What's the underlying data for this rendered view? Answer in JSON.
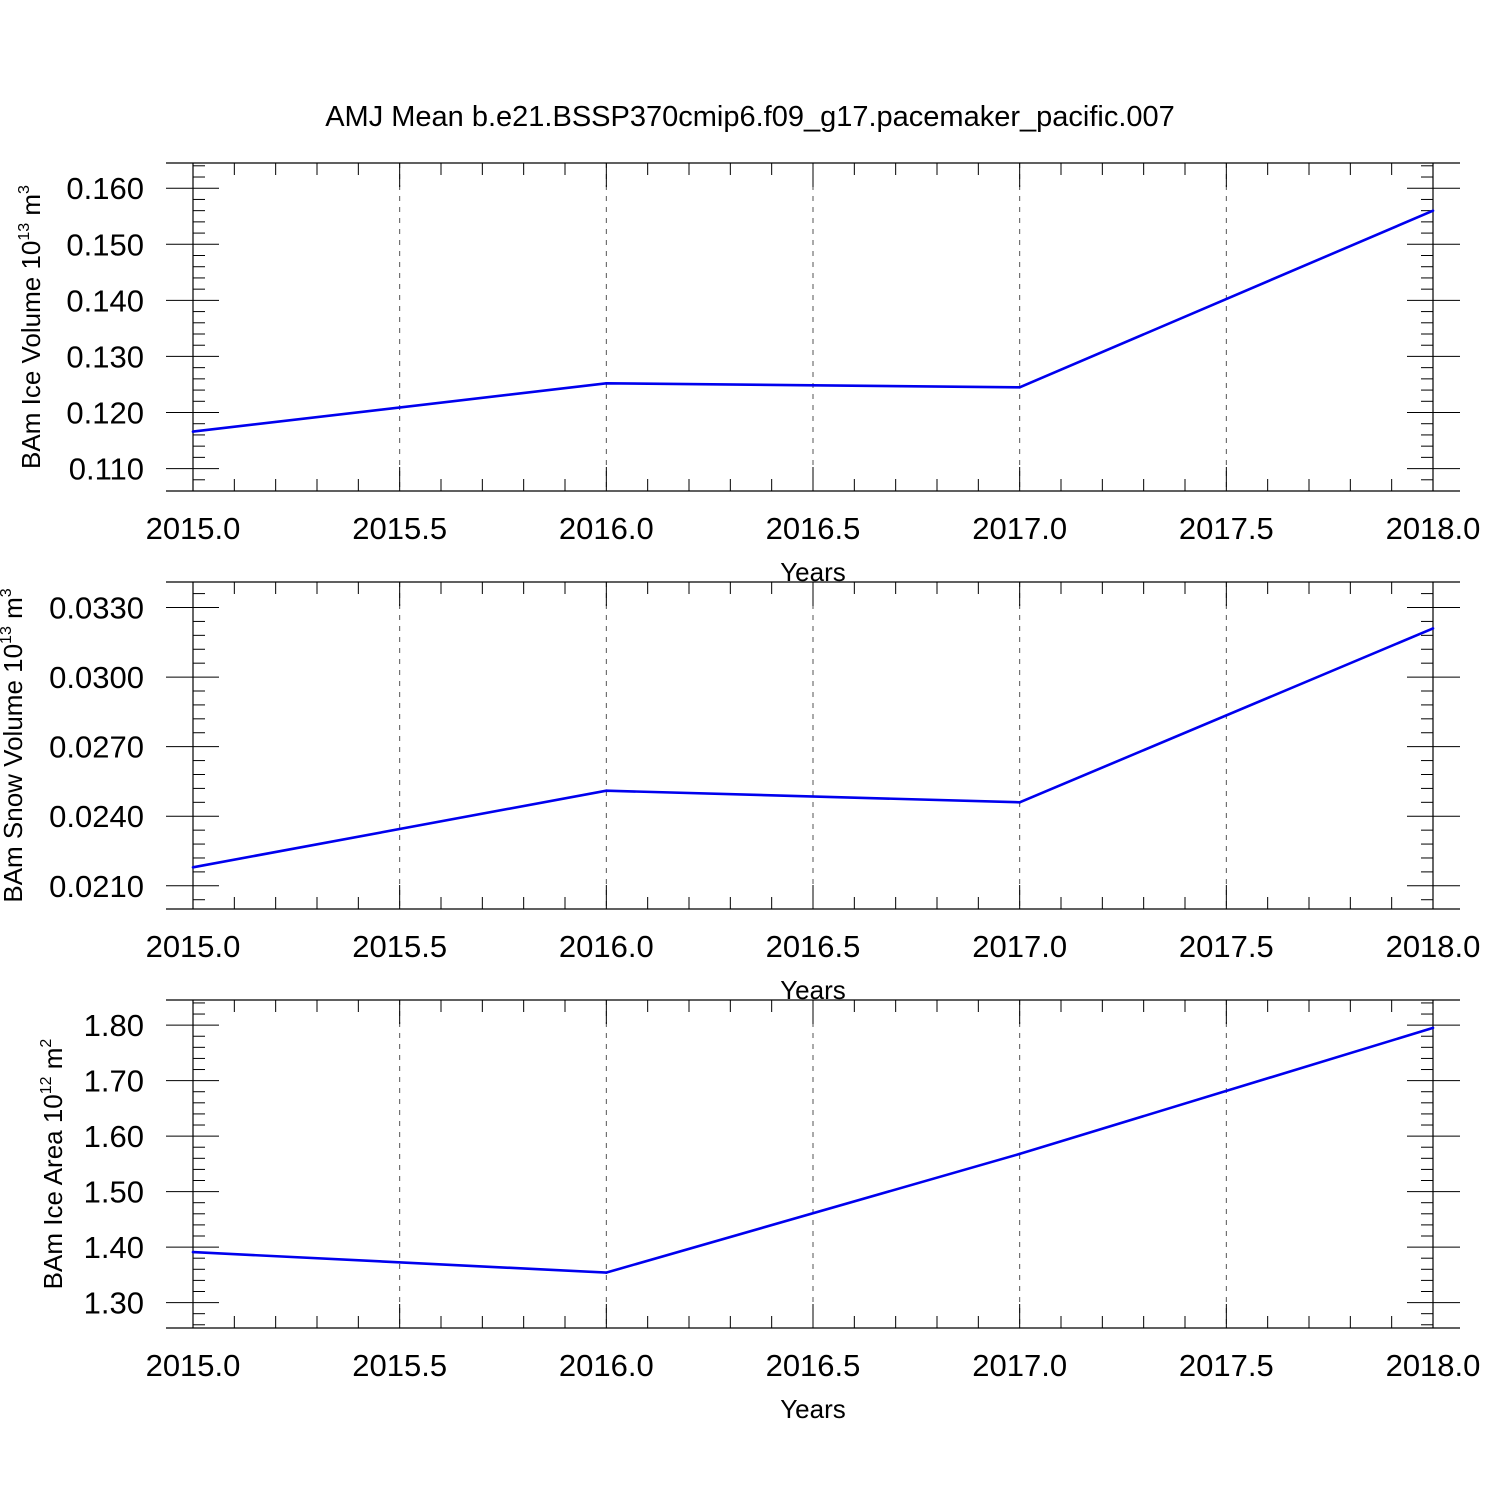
{
  "title": "AMJ Mean b.e21.BSSP370cmip6.f09_g17.pacemaker_pacific.007",
  "chart_data": [
    {
      "type": "line",
      "title": "AMJ Mean b.e21.BSSP370cmip6.f09_g17.pacemaker_pacific.007",
      "ylabel": "BAm Ice Volume 10",
      "ylabel_exp": "13",
      "ylabel_unit": " m",
      "ylabel_unit_exp": "3",
      "xlabel": "Years",
      "xlim": [
        2015.0,
        2018.0
      ],
      "ylim": [
        0.106,
        0.1645
      ],
      "xticks": [
        "2015.0",
        "2015.5",
        "2016.0",
        "2016.5",
        "2017.0",
        "2017.5",
        "2018.0"
      ],
      "yticks": [
        "0.110",
        "0.120",
        "0.130",
        "0.140",
        "0.150",
        "0.160"
      ],
      "grid": "vertical dashed",
      "color": "#0000ee",
      "x": [
        2015.0,
        2016.0,
        2017.0,
        2018.0
      ],
      "y": [
        0.1166,
        0.1252,
        0.1245,
        0.156
      ]
    },
    {
      "type": "line",
      "ylabel": "BAm Snow Volume 10",
      "ylabel_exp": "13",
      "ylabel_unit": " m",
      "ylabel_unit_exp": "3",
      "xlabel": "Years",
      "xlim": [
        2015.0,
        2018.0
      ],
      "ylim": [
        0.02,
        0.0341
      ],
      "xticks": [
        "2015.0",
        "2015.5",
        "2016.0",
        "2016.5",
        "2017.0",
        "2017.5",
        "2018.0"
      ],
      "yticks": [
        "0.0210",
        "0.0240",
        "0.0270",
        "0.0300",
        "0.0330"
      ],
      "grid": "vertical dashed",
      "color": "#0000ee",
      "x": [
        2015.0,
        2016.0,
        2017.0,
        2018.0
      ],
      "y": [
        0.0218,
        0.0251,
        0.0246,
        0.0321
      ]
    },
    {
      "type": "line",
      "ylabel": "BAm Ice Area 10",
      "ylabel_exp": "12",
      "ylabel_unit": " m",
      "ylabel_unit_exp": "2",
      "xlabel": "Years",
      "xlim": [
        2015.0,
        2018.0
      ],
      "ylim": [
        1.2542,
        1.8453
      ],
      "xticks": [
        "2015.0",
        "2015.5",
        "2016.0",
        "2016.5",
        "2017.0",
        "2017.5",
        "2018.0"
      ],
      "yticks": [
        "1.30",
        "1.40",
        "1.50",
        "1.60",
        "1.70",
        "1.80"
      ],
      "grid": "vertical dashed",
      "color": "#0000ee",
      "x": [
        2015.0,
        2016.0,
        2017.0,
        2018.0
      ],
      "y": [
        1.391,
        1.354,
        1.568,
        1.795
      ]
    }
  ]
}
